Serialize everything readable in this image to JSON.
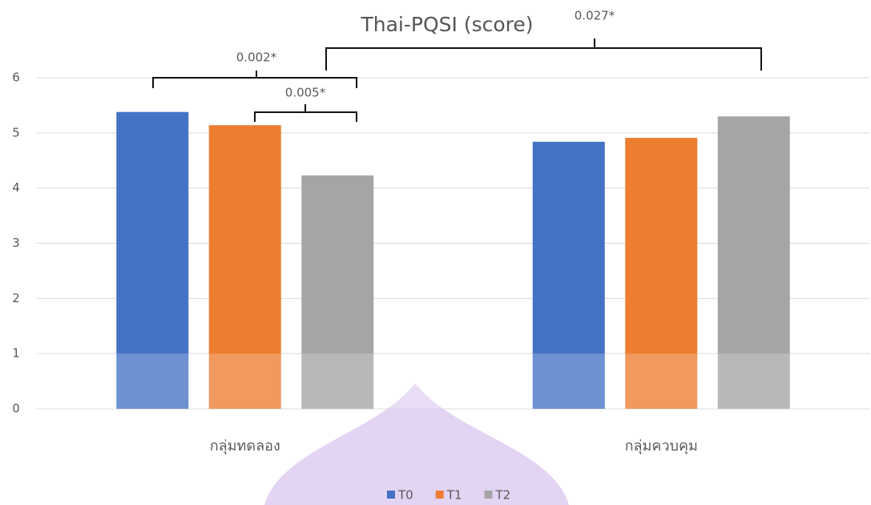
{
  "chart_data": {
    "type": "bar",
    "title": "Thai-PQSI (score)",
    "categories": [
      "กลุ่มทดลอง",
      "กลุ่มควบคุม"
    ],
    "series": [
      {
        "name": "T0",
        "color": "#4472c4",
        "values": [
          5.38,
          4.84
        ]
      },
      {
        "name": "T1",
        "color": "#ed7d31",
        "values": [
          5.14,
          4.91
        ]
      },
      {
        "name": "T2",
        "color": "#a5a5a5",
        "values": [
          4.23,
          5.3
        ]
      }
    ],
    "ylim": [
      0,
      6
    ],
    "yticks": [
      0,
      1,
      2,
      3,
      4,
      5,
      6
    ],
    "grid": true,
    "legend": "bottom",
    "annotations": [
      "0.002*",
      "0.005*",
      "0.027*"
    ]
  }
}
